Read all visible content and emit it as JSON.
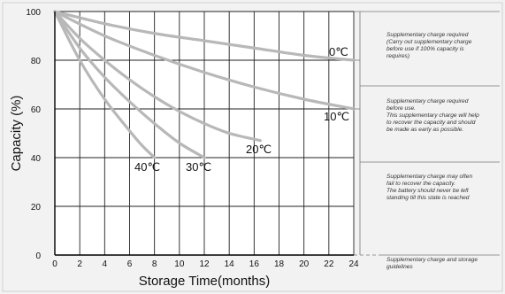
{
  "chart_data": {
    "type": "line",
    "xlabel": "Storage Time(months)",
    "ylabel": "Capacity (%)",
    "xlim": [
      0,
      24
    ],
    "ylim": [
      0,
      100
    ],
    "x_ticks": [
      "0",
      "2",
      "4",
      "6",
      "8",
      "10",
      "12",
      "14",
      "16",
      "18",
      "20",
      "22",
      "24"
    ],
    "y_ticks": [
      "0",
      "20",
      "40",
      "60",
      "80",
      "100"
    ],
    "grid": true,
    "line_color": "#b8b8b8",
    "series": [
      {
        "name": "0℃",
        "x": [
          0,
          4,
          8,
          12,
          16,
          20,
          24
        ],
        "y": [
          100,
          95,
          91,
          88,
          85,
          82,
          80
        ]
      },
      {
        "name": "10℃",
        "x": [
          0,
          4,
          8,
          12,
          16,
          20,
          24
        ],
        "y": [
          100,
          90,
          82,
          75,
          69,
          64,
          60
        ]
      },
      {
        "name": "20℃",
        "x": [
          0,
          2,
          4,
          6,
          8,
          10,
          12,
          14,
          16.5
        ],
        "y": [
          100,
          89,
          80,
          72,
          65,
          59,
          54,
          50,
          47
        ]
      },
      {
        "name": "30℃",
        "x": [
          0,
          2,
          4,
          6,
          8,
          10,
          12
        ],
        "y": [
          100,
          85,
          73,
          63,
          54,
          46,
          40
        ]
      },
      {
        "name": "40℃",
        "x": [
          0,
          2,
          4,
          6,
          7,
          8
        ],
        "y": [
          100,
          80,
          64,
          51,
          45,
          40
        ]
      }
    ]
  },
  "notes": [
    {
      "text": "Supplementary charge required\n(Carry out supplementary charge\nbefore use if 100% capacity is\nrequires)"
    },
    {
      "text": "Supplementary charge required\nbefore use.\nThis supplementary charge will help\nto recover the capacity and should\nbe made  as early as possible."
    },
    {
      "text": "Supplementary charge may often\nfail to recover the capacity.\nThe battery should never be left\nstanding till this state is reached"
    },
    {
      "text": "Supplementary charge and storage\nguidelines"
    }
  ]
}
